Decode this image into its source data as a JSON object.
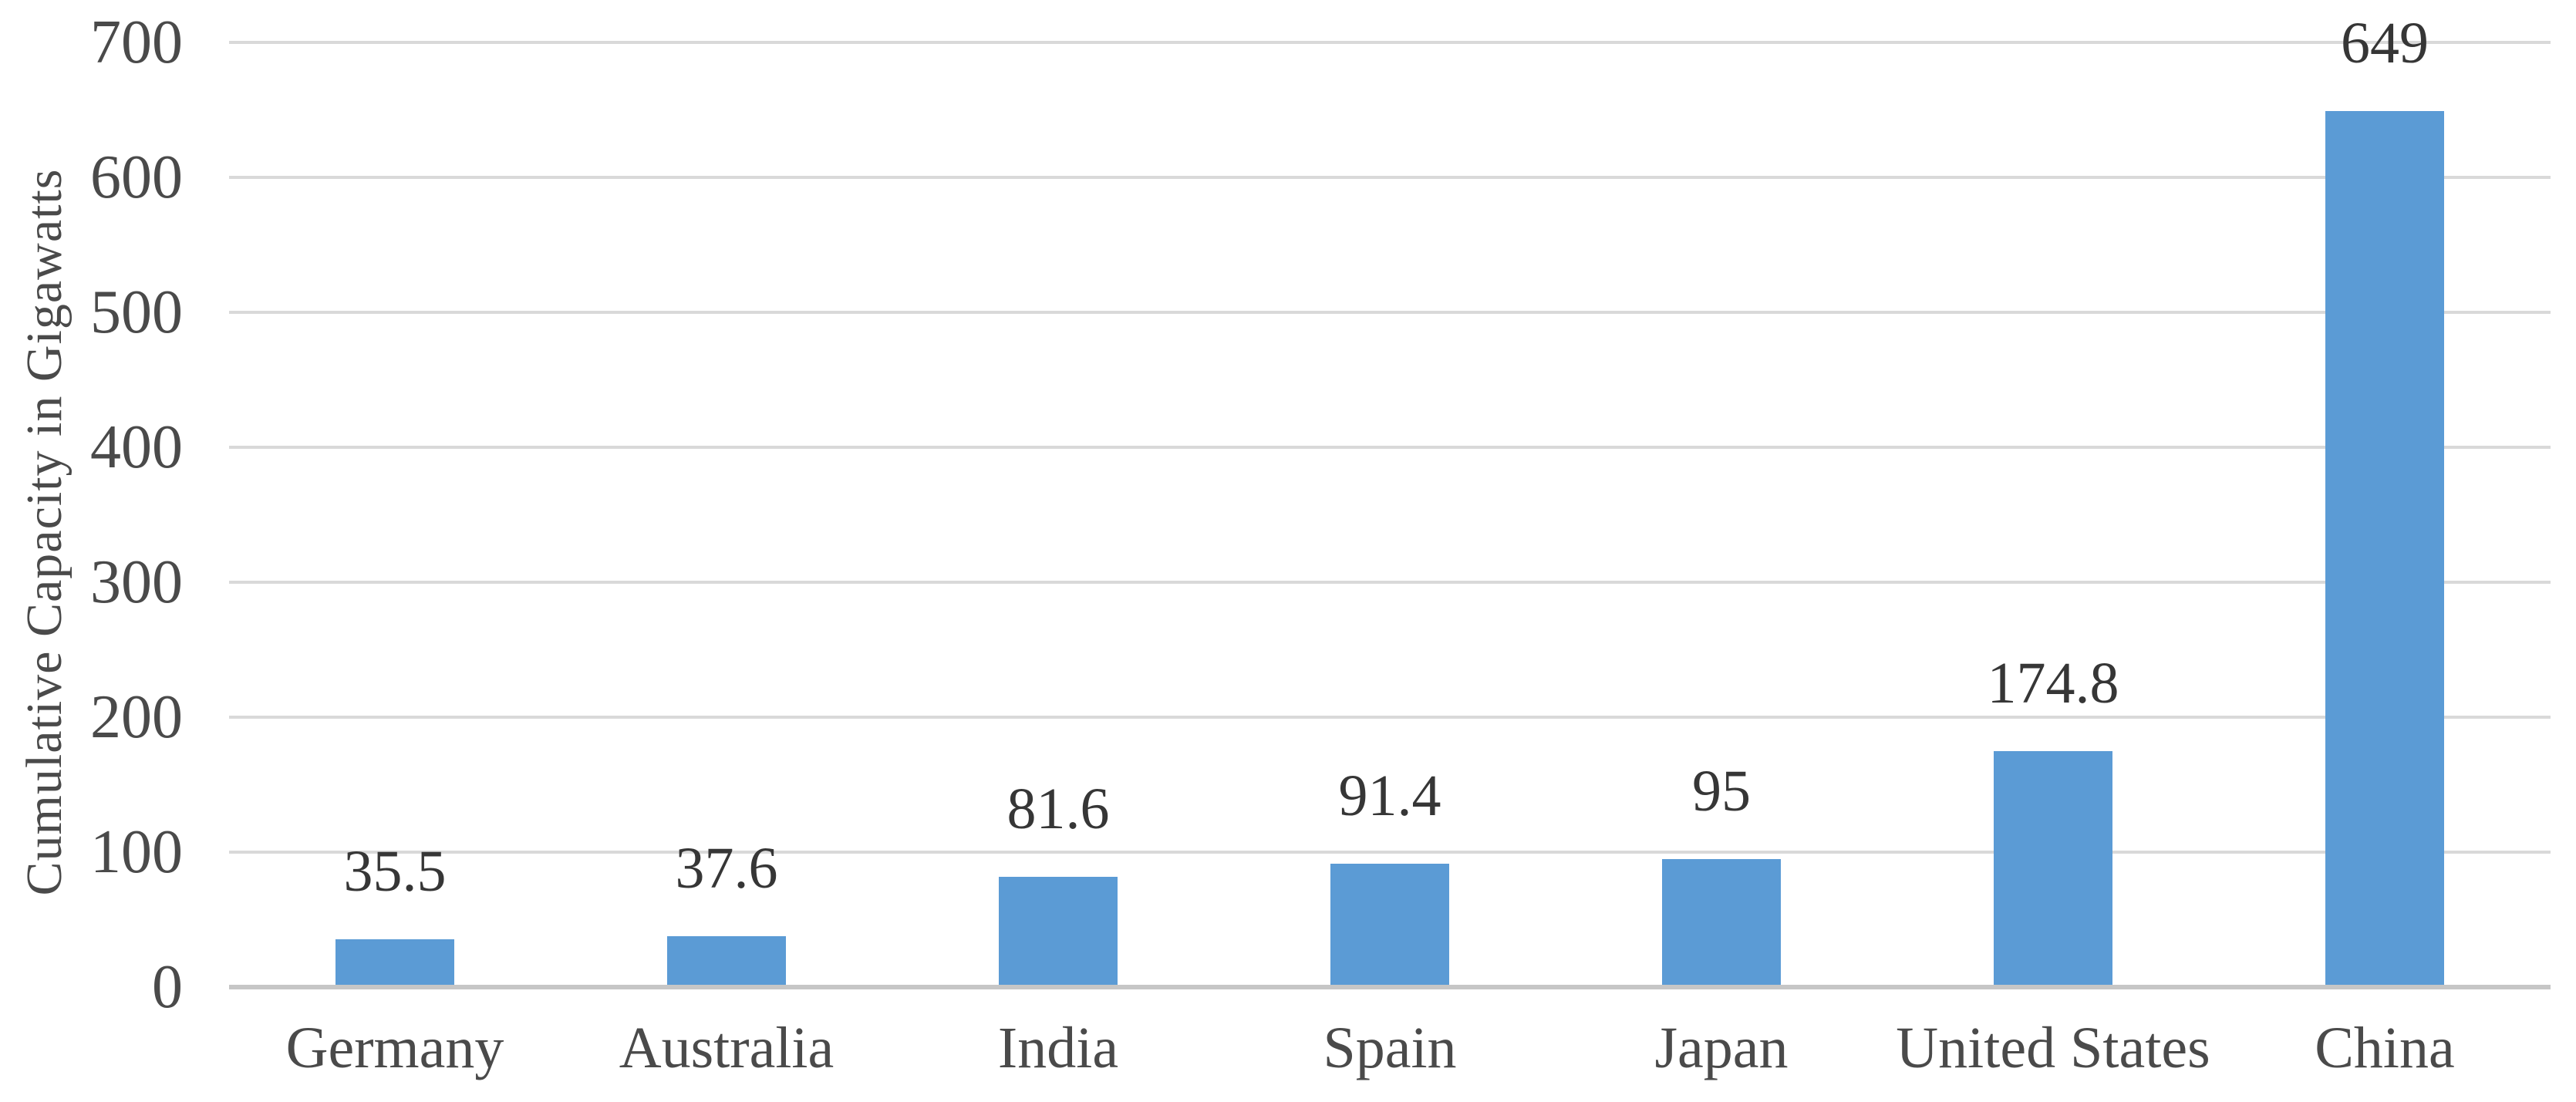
{
  "chart_data": {
    "type": "bar",
    "title": "",
    "xlabel": "",
    "ylabel": "Cumulative Capacity in Gigawatts",
    "categories": [
      "Germany",
      "Australia",
      "India",
      "Spain",
      "Japan",
      "United States",
      "China"
    ],
    "values": [
      35.5,
      37.6,
      81.6,
      91.4,
      95,
      174.8,
      649
    ],
    "value_labels": [
      "35.5",
      "37.6",
      "81.6",
      "91.4",
      "95",
      "174.8",
      "649"
    ],
    "ylim": [
      0,
      700
    ],
    "yticks": [
      0,
      100,
      200,
      300,
      400,
      500,
      600,
      700
    ],
    "ytick_labels": [
      "0",
      "100",
      "200",
      "300",
      "400",
      "500",
      "600",
      "700"
    ],
    "grid": "horizontal",
    "legend": "none",
    "colors": {
      "bar": "#5b9bd5",
      "gridline": "#d9d9d9",
      "axis_line": "#c6c6c6",
      "axis_text": "#4a4a4a",
      "data_label_text": "#363636"
    }
  }
}
